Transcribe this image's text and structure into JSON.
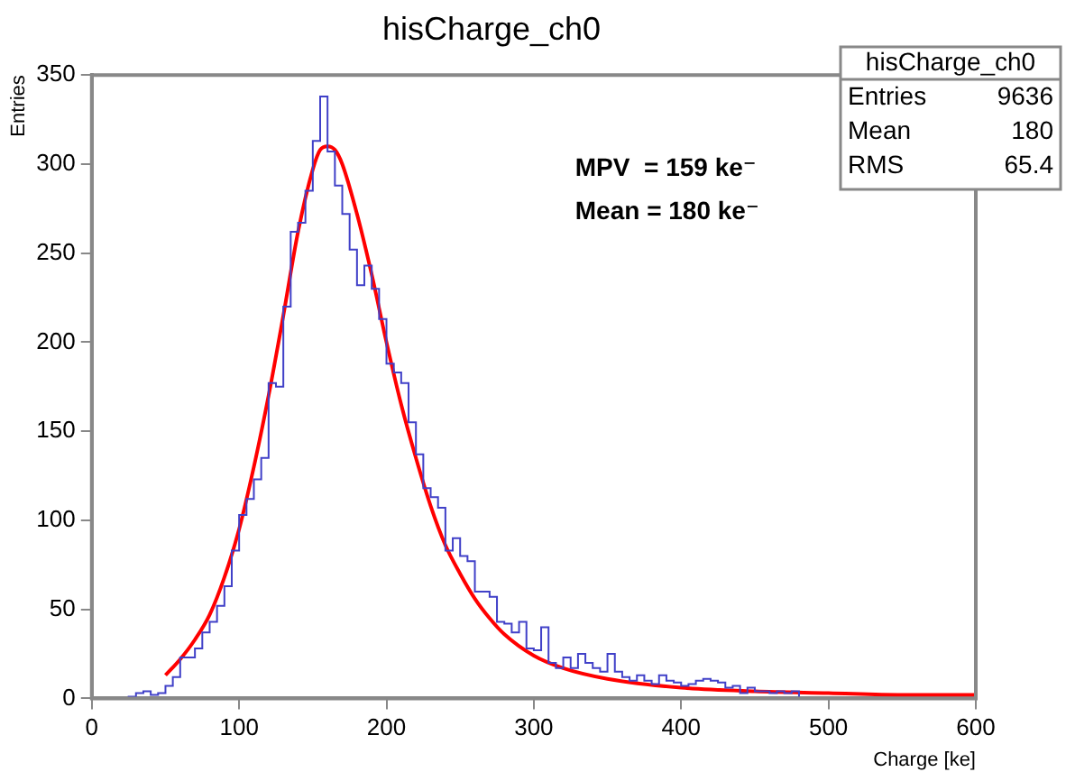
{
  "chart_data": {
    "type": "histogram",
    "title": "hisCharge_ch0",
    "xlabel": "Charge [ke]",
    "ylabel": "Entries",
    "series": [
      {
        "color": "#4040c8",
        "bins": [
          0,
          5,
          10,
          15,
          20,
          25,
          30,
          35,
          40,
          45,
          50,
          55,
          60,
          65,
          70,
          75,
          80,
          85,
          90,
          95,
          100,
          105,
          110,
          115,
          120,
          125,
          130,
          135,
          140,
          145,
          150,
          155,
          160,
          165,
          170,
          175,
          180,
          185,
          190,
          195,
          200,
          205,
          210,
          215,
          220,
          225,
          230,
          235,
          240,
          245,
          250,
          255,
          260,
          265,
          270,
          275,
          280,
          285,
          290,
          295,
          300,
          305,
          310,
          315,
          320,
          325,
          330,
          335,
          340,
          345,
          350,
          355,
          360,
          365,
          370,
          375,
          380,
          385,
          390,
          395,
          400,
          405,
          410,
          415,
          420,
          425,
          430,
          435,
          440,
          445,
          450,
          455,
          460,
          465,
          470,
          475,
          480,
          485,
          490,
          495,
          500,
          505,
          510,
          515,
          520,
          525,
          530,
          535,
          540,
          545,
          550,
          555,
          560,
          565,
          570,
          575,
          580,
          585,
          590,
          595,
          600
        ],
        "values": [
          0,
          0,
          0,
          0,
          0,
          1,
          3,
          4,
          2,
          3,
          7,
          12,
          23,
          23,
          28,
          37,
          43,
          52,
          63,
          83,
          103,
          112,
          123,
          135,
          177,
          175,
          220,
          262,
          267,
          285,
          313,
          338,
          307,
          288,
          272,
          252,
          232,
          243,
          230,
          213,
          188,
          183,
          177,
          155,
          137,
          118,
          113,
          107,
          83,
          90,
          80,
          77,
          60,
          60,
          57,
          43,
          42,
          37,
          43,
          28,
          27,
          40,
          20,
          17,
          23,
          17,
          25,
          20,
          17,
          15,
          25,
          15,
          12,
          10,
          13,
          10,
          8,
          13,
          10,
          9,
          7,
          8,
          10,
          11,
          10,
          9,
          6,
          7,
          3,
          6,
          4,
          4,
          3,
          4,
          3,
          4,
          0,
          0,
          0,
          0,
          0,
          0,
          0,
          0,
          0,
          0,
          0,
          0,
          0,
          0,
          0,
          0,
          0,
          0,
          0,
          0,
          0,
          0,
          0,
          0
        ]
      },
      {
        "type": "line",
        "color": "#ff0000",
        "x": [
          50,
          60,
          70,
          80,
          90,
          100,
          110,
          120,
          130,
          140,
          150,
          155,
          160,
          165,
          170,
          180,
          190,
          200,
          210,
          220,
          230,
          240,
          250,
          260,
          270,
          280,
          300,
          320,
          350,
          400,
          450,
          500,
          550,
          600
        ],
        "values": [
          13,
          22,
          33,
          47,
          68,
          95,
          130,
          170,
          215,
          262,
          297,
          308,
          310,
          308,
          300,
          272,
          238,
          200,
          165,
          135,
          108,
          86,
          70,
          56,
          45,
          36,
          24,
          17,
          11,
          6,
          4,
          3,
          2,
          2
        ]
      }
    ],
    "annotations": [
      "MPV  = 159 ke⁻",
      "Mean = 180 ke⁻",
      "hisCharge_ch0",
      "Entries",
      "9636",
      "Mean",
      "180",
      "RMS",
      "65.4"
    ],
    "xlim": [
      0,
      600
    ],
    "xticks": [
      0,
      100,
      200,
      300,
      400,
      500,
      600
    ],
    "ylim": [
      0,
      350
    ],
    "yticks": [
      0,
      50,
      100,
      150,
      200,
      250,
      300,
      350
    ],
    "grid": false,
    "legend": false,
    "marker": "none"
  }
}
